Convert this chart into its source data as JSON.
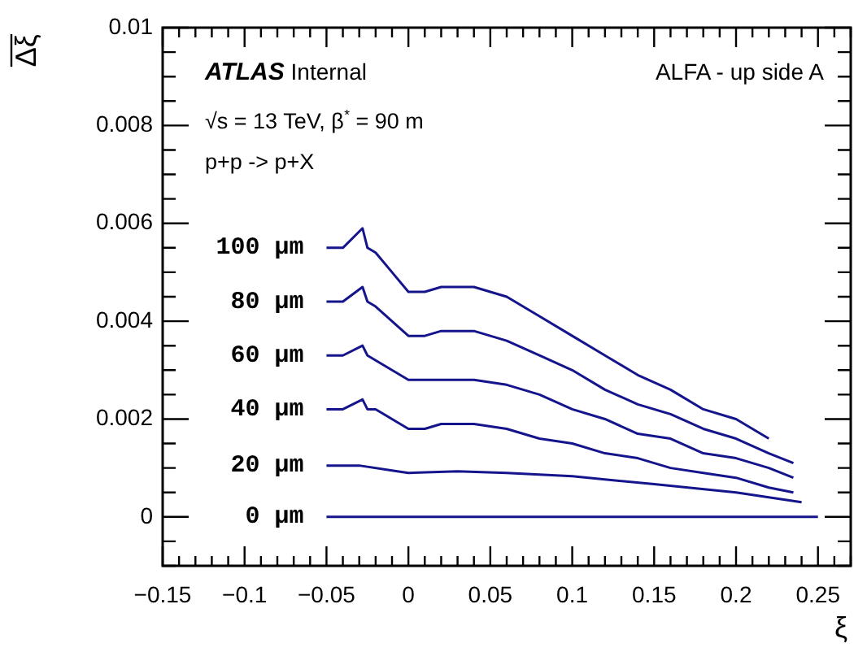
{
  "chart_data": {
    "type": "line",
    "xlabel": "ξ",
    "ylabel": "Δξ",
    "xlim": [
      -0.15,
      0.27
    ],
    "ylim": [
      -0.001,
      0.01
    ],
    "xticks": [
      {
        "value": -0.15,
        "label": "−0.15"
      },
      {
        "value": -0.14,
        "label": null
      },
      {
        "value": -0.13,
        "label": null
      },
      {
        "value": -0.12,
        "label": null
      },
      {
        "value": -0.11,
        "label": null
      },
      {
        "value": -0.1,
        "label": "−0.1"
      },
      {
        "value": -0.09,
        "label": null
      },
      {
        "value": -0.08,
        "label": null
      },
      {
        "value": -0.07,
        "label": null
      },
      {
        "value": -0.06,
        "label": null
      },
      {
        "value": -0.05,
        "label": "−0.05"
      },
      {
        "value": -0.04,
        "label": null
      },
      {
        "value": -0.03,
        "label": null
      },
      {
        "value": -0.02,
        "label": null
      },
      {
        "value": -0.01,
        "label": null
      },
      0,
      {
        "value": 0.01,
        "label": null
      },
      {
        "value": 0.02,
        "label": null
      },
      {
        "value": 0.03,
        "label": null
      },
      {
        "value": 0.04,
        "label": null
      },
      0.05,
      {
        "value": 0.06,
        "label": null
      },
      {
        "value": 0.07,
        "label": null
      },
      {
        "value": 0.08,
        "label": null
      },
      {
        "value": 0.09,
        "label": null
      },
      0.1,
      {
        "value": 0.11,
        "label": null
      },
      {
        "value": 0.12,
        "label": null
      },
      {
        "value": 0.13,
        "label": null
      },
      {
        "value": 0.14,
        "label": null
      },
      0.15,
      {
        "value": 0.16,
        "label": null
      },
      {
        "value": 0.17,
        "label": null
      },
      {
        "value": 0.18,
        "label": null
      },
      {
        "value": 0.19,
        "label": null
      },
      0.2,
      {
        "value": 0.21,
        "label": null
      },
      {
        "value": 0.22,
        "label": null
      },
      {
        "value": 0.23,
        "label": null
      },
      {
        "value": 0.24,
        "label": null
      },
      0.25,
      {
        "value": 0.26,
        "label": null
      },
      {
        "value": 0.27,
        "label": null
      }
    ],
    "yticks": [
      {
        "value": -0.001,
        "label": null
      },
      {
        "value": -0.0005,
        "label": null
      },
      0,
      {
        "value": 0.0005,
        "label": null
      },
      {
        "value": 0.001,
        "label": null
      },
      {
        "value": 0.0015,
        "label": null
      },
      0.002,
      {
        "value": 0.0025,
        "label": null
      },
      {
        "value": 0.003,
        "label": null
      },
      {
        "value": 0.0035,
        "label": null
      },
      0.004,
      {
        "value": 0.0045,
        "label": null
      },
      {
        "value": 0.005,
        "label": null
      },
      {
        "value": 0.0055,
        "label": null
      },
      0.006,
      {
        "value": 0.0065,
        "label": null
      },
      {
        "value": 0.007,
        "label": null
      },
      {
        "value": 0.0075,
        "label": null
      },
      0.008,
      {
        "value": 0.0085,
        "label": null
      },
      {
        "value": 0.009,
        "label": null
      },
      {
        "value": 0.0095,
        "label": null
      },
      0.01
    ],
    "grid": false,
    "legend": false,
    "line_style": "solid",
    "marker": "none",
    "annotations": [
      "ATLAS Internal",
      "√s = 13 TeV, β$^{*}$ = 90 m",
      "p+p -> p+X",
      "ALFA - up side A",
      "100 µm",
      "80 µm",
      "60 µm",
      "40 µm",
      "20 µm",
      "0 µm"
    ],
    "series": [
      {
        "color": "#14148c",
        "x": [
          -0.05,
          -0.04,
          -0.028,
          -0.025,
          -0.02,
          -0.01,
          0,
          0.01,
          0.02,
          0.04,
          0.06,
          0.08,
          0.1,
          0.12,
          0.14,
          0.16,
          0.18,
          0.2,
          0.22
        ],
        "values": [
          0.0055,
          0.0055,
          0.0059,
          0.0055,
          0.0054,
          0.005,
          0.0046,
          0.0046,
          0.0047,
          0.0047,
          0.0045,
          0.0041,
          0.0037,
          0.0033,
          0.0029,
          0.0026,
          0.0022,
          0.002,
          0.0016
        ]
      },
      {
        "color": "#14148c",
        "x": [
          -0.05,
          -0.04,
          -0.028,
          -0.025,
          -0.02,
          -0.01,
          0,
          0.01,
          0.02,
          0.04,
          0.06,
          0.08,
          0.1,
          0.12,
          0.14,
          0.16,
          0.18,
          0.2,
          0.22,
          0.235
        ],
        "values": [
          0.0044,
          0.0044,
          0.0047,
          0.0044,
          0.0043,
          0.004,
          0.0037,
          0.0037,
          0.0038,
          0.0038,
          0.0036,
          0.0033,
          0.003,
          0.0026,
          0.0023,
          0.0021,
          0.0018,
          0.0016,
          0.0013,
          0.0011
        ]
      },
      {
        "color": "#14148c",
        "x": [
          -0.05,
          -0.04,
          -0.028,
          -0.025,
          -0.02,
          -0.01,
          0,
          0.01,
          0.02,
          0.04,
          0.06,
          0.08,
          0.1,
          0.12,
          0.14,
          0.16,
          0.18,
          0.2,
          0.22,
          0.235
        ],
        "values": [
          0.0033,
          0.0033,
          0.0035,
          0.0033,
          0.0032,
          0.003,
          0.0028,
          0.0028,
          0.0028,
          0.0028,
          0.0027,
          0.0025,
          0.0022,
          0.002,
          0.0017,
          0.0016,
          0.0013,
          0.0012,
          0.001,
          0.0008
        ]
      },
      {
        "color": "#14148c",
        "x": [
          -0.05,
          -0.04,
          -0.028,
          -0.025,
          -0.02,
          -0.01,
          0,
          0.01,
          0.02,
          0.04,
          0.06,
          0.08,
          0.1,
          0.12,
          0.14,
          0.16,
          0.18,
          0.2,
          0.22,
          0.235
        ],
        "values": [
          0.0022,
          0.0022,
          0.0024,
          0.0022,
          0.0022,
          0.002,
          0.0018,
          0.0018,
          0.0019,
          0.0019,
          0.0018,
          0.0016,
          0.0015,
          0.0013,
          0.0012,
          0.001,
          0.0009,
          0.0008,
          0.0006,
          0.0005
        ]
      },
      {
        "color": "#14148c",
        "x": [
          -0.05,
          -0.03,
          -0.01,
          0,
          0.03,
          0.06,
          0.1,
          0.15,
          0.2,
          0.24
        ],
        "values": [
          0.00105,
          0.00105,
          0.00095,
          0.0009,
          0.00093,
          0.0009,
          0.00083,
          0.00067,
          0.0005,
          0.0003
        ]
      },
      {
        "color": "#14148c",
        "x": [
          -0.05,
          0,
          0.05,
          0.1,
          0.15,
          0.2,
          0.25
        ],
        "values": [
          0,
          0,
          0,
          0,
          0,
          0,
          0
        ]
      }
    ]
  }
}
